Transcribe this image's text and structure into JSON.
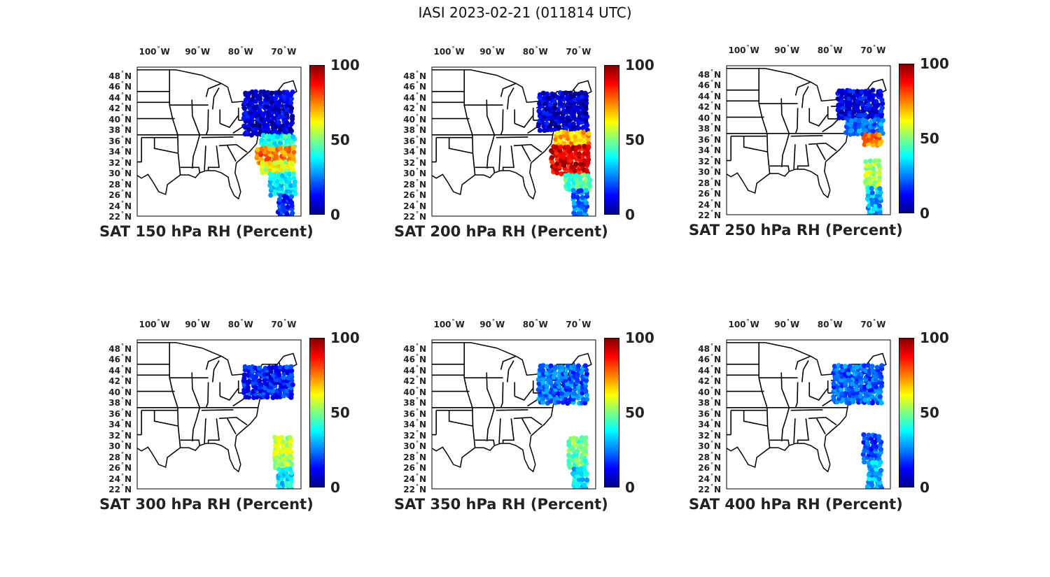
{
  "figure": {
    "title": "IASI 2023-02-21 (011814 UTC)"
  },
  "axes": {
    "lon_ticks": [
      "100",
      "90",
      "80",
      "70"
    ],
    "lon_hemisphere": "W",
    "lat_ticks": [
      "48",
      "46",
      "44",
      "42",
      "40",
      "38",
      "36",
      "34",
      "32",
      "30",
      "28",
      "26",
      "24",
      "22"
    ],
    "lat_hemisphere": "N",
    "lon_range": [
      -104,
      -66
    ],
    "lat_range": [
      22,
      49.5
    ]
  },
  "colorbar": {
    "ticks": [
      "100",
      "50",
      "0"
    ],
    "range": [
      0,
      100
    ],
    "colormap": "jet"
  },
  "colors": {
    "land_outline": "#000000",
    "background": "#ffffff"
  },
  "panels": [
    {
      "title": "SAT 150 hPa RH (Percent)",
      "pressure_hpa": 150
    },
    {
      "title": "SAT 200 hPa RH (Percent)",
      "pressure_hpa": 200
    },
    {
      "title": "SAT 250 hPa RH (Percent)",
      "pressure_hpa": 250
    },
    {
      "title": "SAT 300 hPa RH (Percent)",
      "pressure_hpa": 300
    },
    {
      "title": "SAT 350 hPa RH (Percent)",
      "pressure_hpa": 350
    },
    {
      "title": "SAT 400 hPa RH (Percent)",
      "pressure_hpa": 400
    }
  ],
  "chart_data": [
    {
      "type": "scatter",
      "title": "SAT 150 hPa RH (Percent)",
      "swath": [
        {
          "lat_min": 37,
          "lat_max": 45,
          "lon_min": -79,
          "lon_max": -67.5,
          "rh": 8
        },
        {
          "lat_min": 35,
          "lat_max": 37,
          "lon_min": -75,
          "lon_max": -67.5,
          "rh": 40
        },
        {
          "lat_min": 32,
          "lat_max": 35,
          "lon_min": -76,
          "lon_max": -67.5,
          "rh": 75
        },
        {
          "lat_min": 30,
          "lat_max": 32,
          "lon_min": -75,
          "lon_max": -67.5,
          "rh": 60
        },
        {
          "lat_min": 26,
          "lat_max": 30,
          "lon_min": -73,
          "lon_max": -67.5,
          "rh": 35
        },
        {
          "lat_min": 22,
          "lat_max": 26,
          "lon_min": -71,
          "lon_max": -67.5,
          "rh": 15
        }
      ]
    },
    {
      "type": "scatter",
      "title": "SAT 200 hPa RH (Percent)",
      "swath": [
        {
          "lat_min": 38,
          "lat_max": 45,
          "lon_min": -79,
          "lon_max": -67.5,
          "rh": 8
        },
        {
          "lat_min": 35,
          "lat_max": 38,
          "lon_min": -75,
          "lon_max": -67.5,
          "rh": 70
        },
        {
          "lat_min": 30,
          "lat_max": 35,
          "lon_min": -76,
          "lon_max": -67.5,
          "rh": 90
        },
        {
          "lat_min": 27,
          "lat_max": 30,
          "lon_min": -73,
          "lon_max": -67.5,
          "rh": 45
        },
        {
          "lat_min": 22,
          "lat_max": 27,
          "lon_min": -71,
          "lon_max": -67.5,
          "rh": 25
        }
      ]
    },
    {
      "type": "scatter",
      "title": "SAT 250 hPa RH (Percent)",
      "swath": [
        {
          "lat_min": 40,
          "lat_max": 45,
          "lon_min": -78,
          "lon_max": -67.5,
          "rh": 10
        },
        {
          "lat_min": 37,
          "lat_max": 40,
          "lon_min": -76,
          "lon_max": -67.5,
          "rh": 25
        },
        {
          "lat_min": 35,
          "lat_max": 37,
          "lon_min": -72,
          "lon_max": -67.5,
          "rh": 75
        },
        {
          "lat_min": 27,
          "lat_max": 32,
          "lon_min": -71.5,
          "lon_max": -68,
          "rh": 55
        },
        {
          "lat_min": 22,
          "lat_max": 27,
          "lon_min": -71,
          "lon_max": -68,
          "rh": 30
        }
      ]
    },
    {
      "type": "scatter",
      "title": "SAT 300 hPa RH (Percent)",
      "swath": [
        {
          "lat_min": 39,
          "lat_max": 45,
          "lon_min": -79,
          "lon_max": -67.5,
          "rh": 15
        },
        {
          "lat_min": 26,
          "lat_max": 32,
          "lon_min": -72,
          "lon_max": -68,
          "rh": 55
        },
        {
          "lat_min": 22,
          "lat_max": 26,
          "lon_min": -71,
          "lon_max": -68,
          "rh": 35
        }
      ]
    },
    {
      "type": "scatter",
      "title": "SAT 350 hPa RH (Percent)",
      "swath": [
        {
          "lat_min": 38,
          "lat_max": 45,
          "lon_min": -79,
          "lon_max": -67.5,
          "rh": 22
        },
        {
          "lat_min": 26,
          "lat_max": 32,
          "lon_min": -72,
          "lon_max": -68,
          "rh": 48
        },
        {
          "lat_min": 22,
          "lat_max": 26,
          "lon_min": -71,
          "lon_max": -68,
          "rh": 35
        }
      ]
    },
    {
      "type": "scatter",
      "title": "SAT 400 hPa RH (Percent)",
      "swath": [
        {
          "lat_min": 38,
          "lat_max": 45,
          "lon_min": -79,
          "lon_max": -67.5,
          "rh": 22
        },
        {
          "lat_min": 27,
          "lat_max": 32,
          "lon_min": -72,
          "lon_max": -68,
          "rh": 20
        },
        {
          "lat_min": 22,
          "lat_max": 27,
          "lon_min": -71,
          "lon_max": -68,
          "rh": 30
        }
      ]
    }
  ]
}
